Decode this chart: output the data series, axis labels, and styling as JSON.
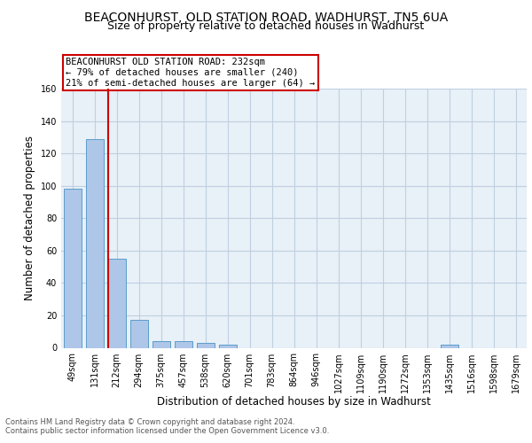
{
  "title1": "BEACONHURST, OLD STATION ROAD, WADHURST, TN5 6UA",
  "title2": "Size of property relative to detached houses in Wadhurst",
  "xlabel": "Distribution of detached houses by size in Wadhurst",
  "ylabel": "Number of detached properties",
  "categories": [
    "49sqm",
    "131sqm",
    "212sqm",
    "294sqm",
    "375sqm",
    "457sqm",
    "538sqm",
    "620sqm",
    "701sqm",
    "783sqm",
    "864sqm",
    "946sqm",
    "1027sqm",
    "1109sqm",
    "1190sqm",
    "1272sqm",
    "1353sqm",
    "1435sqm",
    "1516sqm",
    "1598sqm",
    "1679sqm"
  ],
  "values": [
    98,
    129,
    55,
    17,
    4,
    4,
    3,
    2,
    0,
    0,
    0,
    0,
    0,
    0,
    0,
    0,
    0,
    2,
    0,
    0,
    0
  ],
  "bar_color": "#aec6e8",
  "bar_edge_color": "#5a9ec9",
  "vline_color": "#cc0000",
  "annotation_text": "BEACONHURST OLD STATION ROAD: 232sqm\n← 79% of detached houses are smaller (240)\n21% of semi-detached houses are larger (64) →",
  "annotation_box_color": "#cc0000",
  "ylim": [
    0,
    160
  ],
  "yticks": [
    0,
    20,
    40,
    60,
    80,
    100,
    120,
    140,
    160
  ],
  "footer1": "Contains HM Land Registry data © Crown copyright and database right 2024.",
  "footer2": "Contains public sector information licensed under the Open Government Licence v3.0.",
  "bg_color": "#ffffff",
  "plot_bg_color": "#e8f0f8",
  "grid_color": "#c0cfe0",
  "title1_fontsize": 10,
  "title2_fontsize": 9,
  "tick_fontsize": 7,
  "ylabel_fontsize": 8.5,
  "xlabel_fontsize": 8.5,
  "footer_fontsize": 6,
  "annotation_fontsize": 7.5
}
